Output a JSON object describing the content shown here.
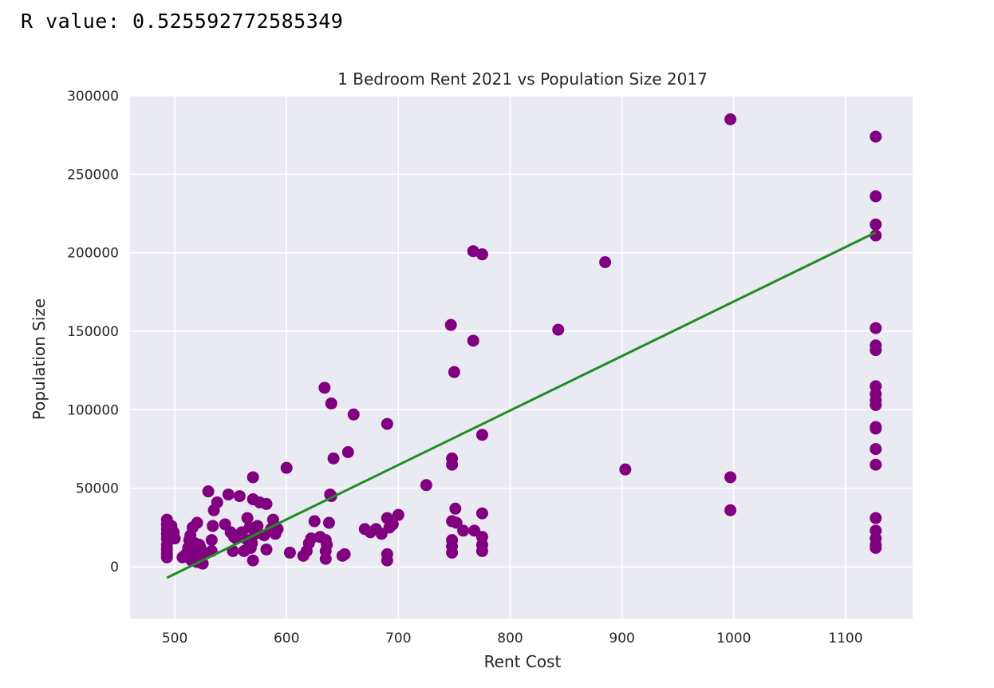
{
  "output": {
    "r_label": "R value:",
    "r_value": "0.525592772585349"
  },
  "chart_data": {
    "type": "scatter",
    "title": "1 Bedroom Rent 2021 vs Population Size 2017",
    "xlabel": "Rent Cost",
    "ylabel": "Population Size",
    "xlim": [
      460,
      1160
    ],
    "ylim": [
      -33000,
      300000
    ],
    "xticks": [
      500,
      600,
      700,
      800,
      900,
      1000,
      1100
    ],
    "yticks": [
      0,
      50000,
      100000,
      150000,
      200000,
      250000,
      300000
    ],
    "xtick_labels": [
      "500",
      "600",
      "700",
      "800",
      "900",
      "1000",
      "1100"
    ],
    "ytick_labels": [
      "0",
      "50000",
      "100000",
      "150000",
      "200000",
      "250000",
      "300000"
    ],
    "grid": true,
    "background": "#eaeaf2",
    "point_color": "#800080",
    "line_color": "#228b22",
    "points": [
      [
        493,
        30000
      ],
      [
        493,
        27000
      ],
      [
        493,
        24000
      ],
      [
        493,
        21000
      ],
      [
        493,
        18000
      ],
      [
        493,
        14000
      ],
      [
        493,
        11000
      ],
      [
        493,
        8000
      ],
      [
        493,
        6000
      ],
      [
        497,
        26000
      ],
      [
        499,
        22000
      ],
      [
        500,
        18000
      ],
      [
        507,
        6000
      ],
      [
        510,
        8000
      ],
      [
        512,
        12000
      ],
      [
        513,
        17000
      ],
      [
        514,
        20000
      ],
      [
        515,
        4000
      ],
      [
        516,
        25000
      ],
      [
        517,
        10000
      ],
      [
        518,
        15000
      ],
      [
        520,
        28000
      ],
      [
        520,
        3000
      ],
      [
        522,
        14000
      ],
      [
        523,
        12000
      ],
      [
        525,
        8000
      ],
      [
        525,
        2000
      ],
      [
        530,
        48000
      ],
      [
        533,
        17000
      ],
      [
        533,
        10000
      ],
      [
        534,
        26000
      ],
      [
        535,
        36000
      ],
      [
        538,
        41000
      ],
      [
        545,
        27000
      ],
      [
        548,
        46000
      ],
      [
        550,
        22000
      ],
      [
        552,
        10000
      ],
      [
        553,
        19000
      ],
      [
        555,
        18000
      ],
      [
        558,
        45000
      ],
      [
        560,
        22000
      ],
      [
        562,
        10000
      ],
      [
        565,
        31000
      ],
      [
        565,
        17000
      ],
      [
        567,
        25000
      ],
      [
        568,
        12000
      ],
      [
        569,
        15000
      ],
      [
        570,
        57000
      ],
      [
        570,
        43000
      ],
      [
        570,
        4000
      ],
      [
        572,
        21000
      ],
      [
        574,
        26000
      ],
      [
        576,
        41000
      ],
      [
        580,
        20000
      ],
      [
        582,
        40000
      ],
      [
        582,
        11000
      ],
      [
        586,
        24000
      ],
      [
        588,
        30000
      ],
      [
        590,
        21000
      ],
      [
        592,
        24000
      ],
      [
        600,
        63000
      ],
      [
        603,
        9000
      ],
      [
        615,
        7000
      ],
      [
        618,
        10000
      ],
      [
        620,
        15000
      ],
      [
        622,
        18000
      ],
      [
        625,
        29000
      ],
      [
        630,
        19000
      ],
      [
        634,
        114000
      ],
      [
        635,
        17000
      ],
      [
        635,
        10000
      ],
      [
        635,
        5000
      ],
      [
        636,
        14000
      ],
      [
        638,
        28000
      ],
      [
        639,
        46000
      ],
      [
        640,
        45000
      ],
      [
        640,
        104000
      ],
      [
        642,
        69000
      ],
      [
        650,
        7000
      ],
      [
        652,
        8000
      ],
      [
        655,
        73000
      ],
      [
        660,
        97000
      ],
      [
        670,
        24000
      ],
      [
        675,
        22000
      ],
      [
        680,
        24000
      ],
      [
        685,
        21000
      ],
      [
        690,
        91000
      ],
      [
        690,
        31000
      ],
      [
        690,
        8000
      ],
      [
        690,
        4000
      ],
      [
        692,
        25000
      ],
      [
        695,
        27000
      ],
      [
        700,
        33000
      ],
      [
        725,
        52000
      ],
      [
        747,
        154000
      ],
      [
        748,
        69000
      ],
      [
        748,
        65000
      ],
      [
        748,
        29000
      ],
      [
        748,
        17000
      ],
      [
        748,
        13000
      ],
      [
        748,
        9000
      ],
      [
        750,
        124000
      ],
      [
        751,
        37000
      ],
      [
        752,
        28000
      ],
      [
        758,
        23000
      ],
      [
        767,
        201000
      ],
      [
        767,
        144000
      ],
      [
        768,
        23000
      ],
      [
        775,
        199000
      ],
      [
        775,
        84000
      ],
      [
        775,
        34000
      ],
      [
        775,
        19000
      ],
      [
        775,
        14000
      ],
      [
        775,
        10000
      ],
      [
        843,
        151000
      ],
      [
        885,
        194000
      ],
      [
        903,
        62000
      ],
      [
        997,
        285000
      ],
      [
        997,
        57000
      ],
      [
        997,
        36000
      ],
      [
        1127,
        274000
      ],
      [
        1127,
        236000
      ],
      [
        1127,
        218000
      ],
      [
        1127,
        211000
      ],
      [
        1127,
        152000
      ],
      [
        1127,
        141000
      ],
      [
        1127,
        138000
      ],
      [
        1127,
        115000
      ],
      [
        1127,
        110000
      ],
      [
        1127,
        106000
      ],
      [
        1127,
        103000
      ],
      [
        1127,
        89000
      ],
      [
        1127,
        88000
      ],
      [
        1127,
        75000
      ],
      [
        1127,
        65000
      ],
      [
        1127,
        31000
      ],
      [
        1127,
        23000
      ],
      [
        1127,
        18000
      ],
      [
        1127,
        14000
      ],
      [
        1127,
        12000
      ]
    ],
    "regression_line": {
      "x": [
        493,
        1127
      ],
      "y": [
        -7000,
        213000
      ]
    }
  }
}
